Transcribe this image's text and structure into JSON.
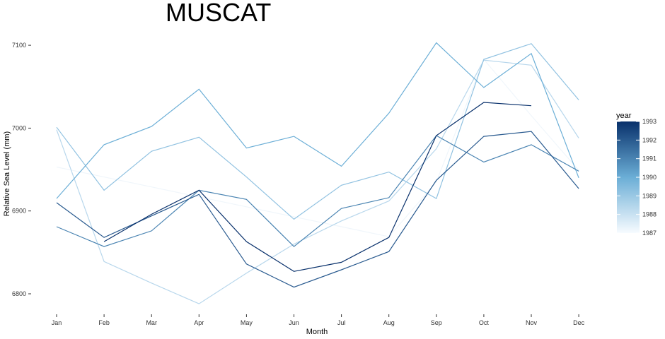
{
  "chart_data": {
    "type": "line",
    "title": "MUSCAT",
    "xlabel": "Month",
    "ylabel": "Relative Sea Level (mm)",
    "categories": [
      "Jan",
      "Feb",
      "Mar",
      "Apr",
      "May",
      "Jun",
      "Jul",
      "Aug",
      "Sep",
      "Oct",
      "Nov",
      "Dec"
    ],
    "y_ticks": [
      6800,
      6900,
      7000,
      7100
    ],
    "ylim": [
      6780,
      7112
    ],
    "grid": false,
    "legend": {
      "title": "year",
      "position": "right",
      "ticks": [
        1993,
        1992,
        1991,
        1990,
        1989,
        1988,
        1987
      ],
      "range": [
        1987,
        1993
      ],
      "color_low": "#f7fbff",
      "color_high": "#08306b"
    },
    "series": [
      {
        "name": "1987",
        "values": [
          6953,
          6941,
          6929,
          6917,
          6905,
          6893,
          6881,
          6869,
          6935,
          7083,
          7015,
          6949
        ]
      },
      {
        "name": "1988",
        "values": [
          6998,
          6839,
          6813,
          6788,
          6825,
          6860,
          6888,
          6912,
          6975,
          7082,
          7076,
          6988
        ]
      },
      {
        "name": "1989",
        "values": [
          7001,
          6925,
          6972,
          6989,
          6941,
          6890,
          6931,
          6947,
          6915,
          7083,
          7102,
          7034
        ]
      },
      {
        "name": "1990",
        "values": [
          6915,
          6980,
          7002,
          7047,
          6976,
          6990,
          6954,
          7018,
          7103,
          7049,
          7090,
          6940
        ]
      },
      {
        "name": "1991",
        "values": [
          6881,
          6857,
          6876,
          6925,
          6914,
          6857,
          6903,
          6916,
          6991,
          6959,
          6980,
          6948
        ]
      },
      {
        "name": "1992",
        "values": [
          6910,
          6868,
          6894,
          6920,
          6836,
          6808,
          6829,
          6851,
          6937,
          6990,
          6996,
          6927
        ]
      },
      {
        "name": "1993",
        "values": [
          null,
          6863,
          6896,
          6925,
          6863,
          6827,
          6838,
          6868,
          6991,
          7031,
          7027,
          null
        ]
      }
    ]
  }
}
